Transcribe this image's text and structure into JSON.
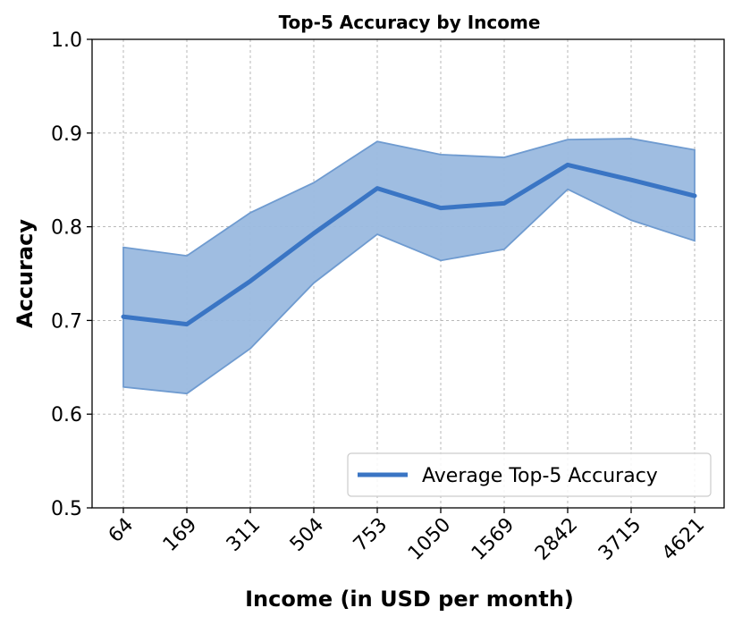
{
  "chart_data": {
    "type": "line",
    "title": "Top-5 Accuracy by Income",
    "xlabel": "Income (in USD per month)",
    "ylabel": "Accuracy",
    "categories": [
      "64",
      "169",
      "311",
      "504",
      "753",
      "1050",
      "1569",
      "2842",
      "3715",
      "4621"
    ],
    "series": [
      {
        "name": "Average Top-5 Accuracy",
        "values": [
          0.704,
          0.696,
          0.742,
          0.793,
          0.841,
          0.82,
          0.825,
          0.866,
          0.85,
          0.833
        ],
        "lower": [
          0.629,
          0.622,
          0.67,
          0.74,
          0.792,
          0.764,
          0.776,
          0.84,
          0.807,
          0.785
        ],
        "upper": [
          0.778,
          0.769,
          0.815,
          0.847,
          0.891,
          0.877,
          0.874,
          0.893,
          0.894,
          0.882
        ]
      }
    ],
    "ylim": [
      0.5,
      1.0
    ],
    "yticks": [
      "0.5",
      "0.6",
      "0.7",
      "0.8",
      "0.9",
      "1.0"
    ],
    "grid": true,
    "legend_position": "lower-right",
    "colors": {
      "line": "#3a75c4",
      "band": "#9ab9df",
      "band_edge": "#6f9bd0",
      "grid": "#b0b0b0"
    }
  }
}
